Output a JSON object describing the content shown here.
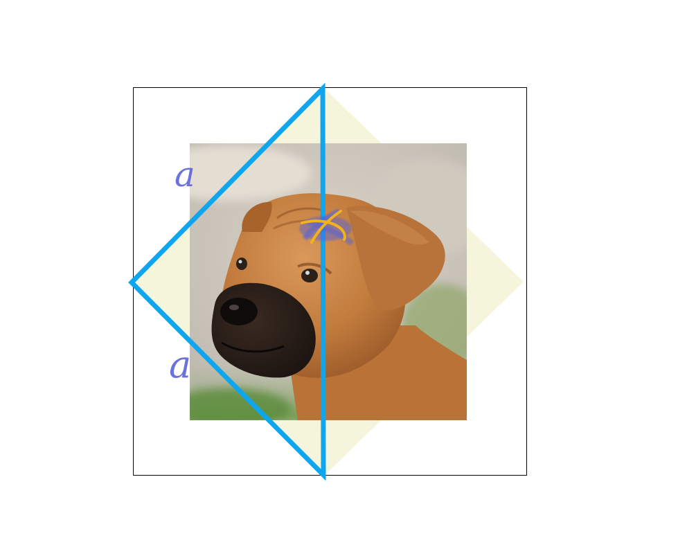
{
  "diagram": {
    "labels": {
      "side_top": "a",
      "side_bottom": "a"
    },
    "photo": {
      "subject": "puppy",
      "description_icon": "dog-photo"
    },
    "colors": {
      "outer_square_stroke": "#000000",
      "rotated_square_fill": "#f5f5dc",
      "triangle_stroke": "#10a6ee",
      "handwriting": "#5b63d8",
      "angle_mark": "#f2b21c",
      "angle_mark_shadow": "#4f5fe0"
    }
  }
}
